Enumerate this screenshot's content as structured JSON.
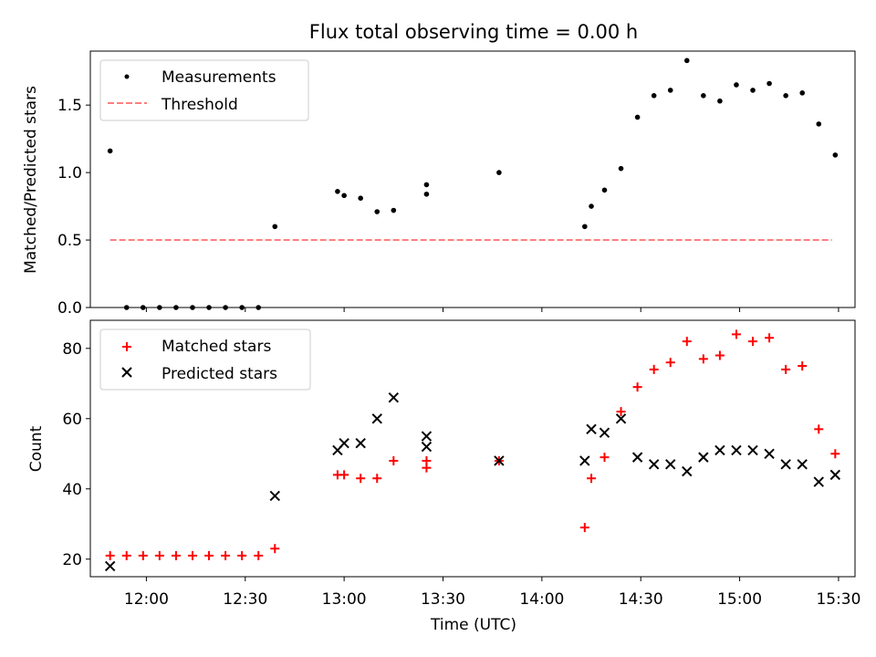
{
  "chart_data": [
    {
      "type": "scatter",
      "title": "Flux total observing time = 0.00 h",
      "xlabel": "",
      "ylabel": "Matched/Predicted stars",
      "ylim": [
        0,
        1.9
      ],
      "yticks": [
        "0.0",
        "0.5",
        "1.0",
        "1.5"
      ],
      "series": [
        {
          "name": "Measurements",
          "marker": "dot",
          "color": "#000000",
          "x": [
            "11:49",
            "11:54",
            "11:59",
            "12:04",
            "12:09",
            "12:14",
            "12:19",
            "12:24",
            "12:29",
            "12:34",
            "12:39",
            "12:58",
            "13:00",
            "13:05",
            "13:10",
            "13:15",
            "13:25",
            "13:25",
            "13:47",
            "14:13",
            "14:15",
            "14:19",
            "14:24",
            "14:29",
            "14:34",
            "14:39",
            "14:44",
            "14:49",
            "14:54",
            "14:59",
            "15:04",
            "15:09",
            "15:14",
            "15:19",
            "15:24",
            "15:29"
          ],
          "y": [
            1.16,
            0.0,
            0.0,
            0.0,
            0.0,
            0.0,
            0.0,
            0.0,
            0.0,
            0.0,
            0.6,
            0.86,
            0.83,
            0.81,
            0.71,
            0.72,
            0.91,
            0.84,
            1.0,
            0.6,
            0.75,
            0.87,
            1.03,
            1.41,
            1.57,
            1.61,
            1.83,
            1.57,
            1.53,
            1.65,
            1.61,
            1.66,
            1.57,
            1.59,
            1.36,
            1.13
          ]
        },
        {
          "name": "Threshold",
          "marker": "dashed-line",
          "color": "#ff7f7f",
          "x": [
            "11:49",
            "15:28"
          ],
          "y": [
            0.5,
            0.5
          ]
        }
      ],
      "legend": "top-left"
    },
    {
      "type": "scatter",
      "title": "",
      "xlabel": "Time (UTC)",
      "ylabel": "Count",
      "ylim": [
        15,
        88
      ],
      "yticks": [
        "20",
        "40",
        "60",
        "80"
      ],
      "xticks": [
        "12:00",
        "12:30",
        "13:00",
        "13:30",
        "14:00",
        "14:30",
        "15:00",
        "15:30"
      ],
      "xlim": [
        "11:43",
        "15:35"
      ],
      "series": [
        {
          "name": "Matched stars",
          "marker": "plus",
          "color": "#ff0000",
          "x": [
            "11:49",
            "11:54",
            "11:59",
            "12:04",
            "12:09",
            "12:14",
            "12:19",
            "12:24",
            "12:29",
            "12:34",
            "12:39",
            "12:58",
            "13:00",
            "13:05",
            "13:10",
            "13:15",
            "13:25",
            "13:25",
            "13:47",
            "14:13",
            "14:15",
            "14:19",
            "14:24",
            "14:29",
            "14:34",
            "14:39",
            "14:44",
            "14:49",
            "14:54",
            "14:59",
            "15:04",
            "15:09",
            "15:14",
            "15:19",
            "15:24",
            "15:29"
          ],
          "y": [
            21,
            21,
            21,
            21,
            21,
            21,
            21,
            21,
            21,
            21,
            23,
            44,
            44,
            43,
            43,
            48,
            48,
            46,
            48,
            29,
            43,
            49,
            62,
            69,
            74,
            76,
            82,
            77,
            78,
            84,
            82,
            83,
            74,
            75,
            57,
            50
          ]
        },
        {
          "name": "Predicted stars",
          "marker": "x",
          "color": "#000000",
          "x": [
            "11:49",
            "12:39",
            "12:58",
            "13:00",
            "13:05",
            "13:10",
            "13:15",
            "13:25",
            "13:25",
            "13:47",
            "14:13",
            "14:15",
            "14:19",
            "14:24",
            "14:29",
            "14:34",
            "14:39",
            "14:44",
            "14:49",
            "14:54",
            "14:59",
            "15:04",
            "15:09",
            "15:14",
            "15:19",
            "15:24",
            "15:29"
          ],
          "y": [
            18,
            38,
            51,
            53,
            53,
            60,
            66,
            55,
            52,
            48,
            48,
            57,
            56,
            60,
            49,
            47,
            47,
            45,
            49,
            51,
            51,
            51,
            50,
            47,
            47,
            42,
            44
          ]
        }
      ],
      "legend": "top-left"
    }
  ]
}
